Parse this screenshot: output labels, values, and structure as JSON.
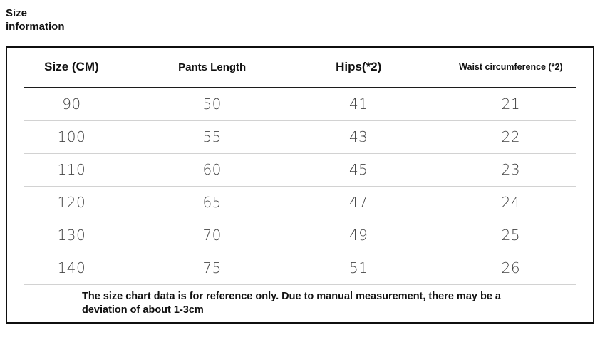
{
  "page": {
    "title": "Size information"
  },
  "chart_data": {
    "type": "table",
    "title": "Size information",
    "columns": [
      "Size (CM)",
      "Pants Length",
      "Hips(*2)",
      "Waist circumference (*2)"
    ],
    "rows": [
      [
        "90",
        "50",
        "41",
        "21"
      ],
      [
        "100",
        "55",
        "43",
        "22"
      ],
      [
        "110",
        "60",
        "45",
        "23"
      ],
      [
        "120",
        "65",
        "47",
        "24"
      ],
      [
        "130",
        "70",
        "49",
        "25"
      ],
      [
        "140",
        "75",
        "51",
        "26"
      ]
    ],
    "footnote": "The size chart data is for reference only. Due to manual measurement, there may be a deviation of about 1-3cm"
  },
  "colors": {
    "text_primary": "#111111",
    "text_data": "#454545",
    "border_outer": "#0f0f0f",
    "separator_dark": "#1c1c1c",
    "separator_light": "#d2d2d2",
    "background": "#ffffff"
  }
}
